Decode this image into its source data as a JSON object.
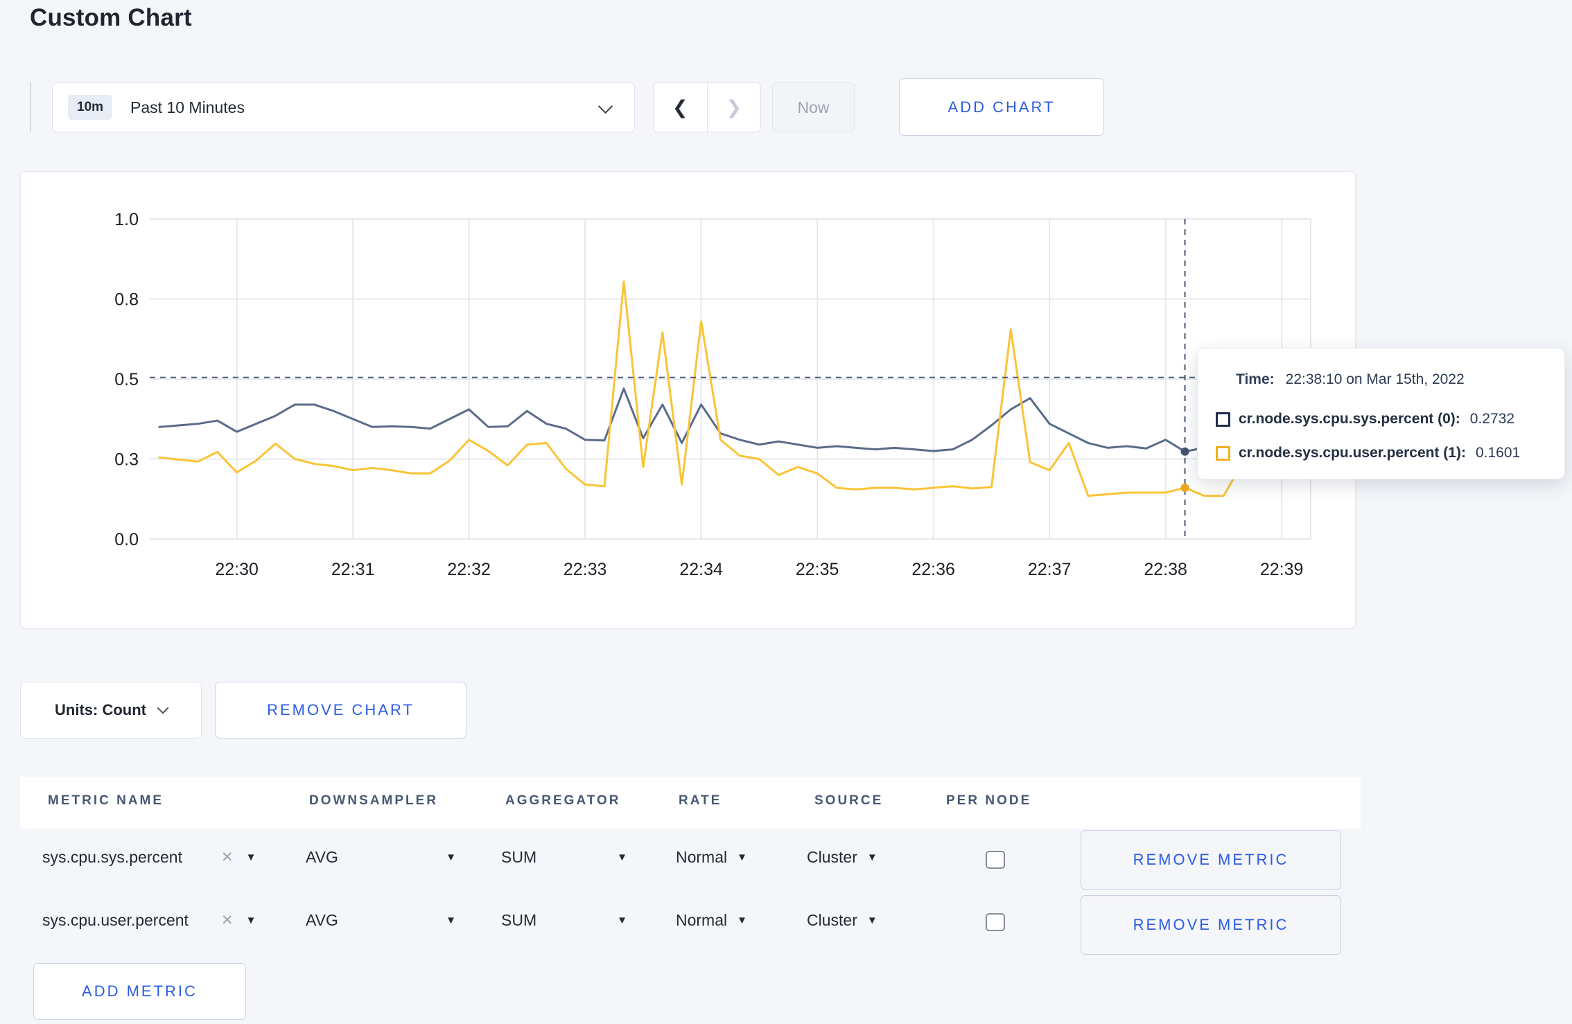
{
  "page_title": "Custom Chart",
  "colors": {
    "accent_blue": "#2a5ce4",
    "page_background": "#f4f6fa",
    "grid_line": "#e7e8eb",
    "axis_text": "#1d2127",
    "crosshair": "#4a5a78",
    "series_sys": "#5b6b8a",
    "series_user": "#fbc437"
  },
  "toolbar": {
    "timescale_badge": "10m",
    "timescale_label": "Past 10 Minutes",
    "prev_label": "❮",
    "next_label": "❯",
    "now_label": "Now",
    "add_chart_label": "ADD CHART"
  },
  "chart_data": {
    "type": "line",
    "title": "",
    "xlabel": "",
    "ylabel": "",
    "grid": true,
    "legend_position": "tooltip",
    "ylim": [
      0,
      1
    ],
    "y_ticks": [
      {
        "value": 0.0,
        "label": "0.0"
      },
      {
        "value": 0.25,
        "label": "0.3"
      },
      {
        "value": 0.5,
        "label": "0.5"
      },
      {
        "value": 0.75,
        "label": "0.8"
      },
      {
        "value": 1.0,
        "label": "1.0"
      }
    ],
    "x_domain": [
      "22:29:15",
      "22:39:15"
    ],
    "x_ticks": [
      "22:30",
      "22:31",
      "22:32",
      "22:33",
      "22:34",
      "22:35",
      "22:36",
      "22:37",
      "22:38",
      "22:39"
    ],
    "times": [
      "22:29:20",
      "22:29:30",
      "22:29:40",
      "22:29:50",
      "22:30:00",
      "22:30:10",
      "22:30:20",
      "22:30:30",
      "22:30:40",
      "22:30:50",
      "22:31:00",
      "22:31:10",
      "22:31:20",
      "22:31:30",
      "22:31:40",
      "22:31:50",
      "22:32:00",
      "22:32:10",
      "22:32:20",
      "22:32:30",
      "22:32:40",
      "22:32:50",
      "22:33:00",
      "22:33:10",
      "22:33:20",
      "22:33:30",
      "22:33:40",
      "22:33:50",
      "22:34:00",
      "22:34:10",
      "22:34:20",
      "22:34:30",
      "22:34:40",
      "22:34:50",
      "22:35:00",
      "22:35:10",
      "22:35:20",
      "22:35:30",
      "22:35:40",
      "22:35:50",
      "22:36:00",
      "22:36:10",
      "22:36:20",
      "22:36:30",
      "22:36:40",
      "22:36:50",
      "22:37:00",
      "22:37:10",
      "22:37:20",
      "22:37:30",
      "22:37:40",
      "22:37:50",
      "22:38:00",
      "22:38:10",
      "22:38:20",
      "22:38:30",
      "22:38:40",
      "22:38:50",
      "22:39:00",
      "22:39:10"
    ],
    "series": [
      {
        "name": "cr.node.sys.cpu.sys.percent",
        "color": "#5b6b8a",
        "values": [
          0.35,
          0.355,
          0.36,
          0.37,
          0.335,
          0.36,
          0.385,
          0.42,
          0.42,
          0.4,
          0.375,
          0.35,
          0.352,
          0.35,
          0.345,
          0.375,
          0.405,
          0.35,
          0.352,
          0.4,
          0.36,
          0.345,
          0.31,
          0.308,
          0.47,
          0.315,
          0.42,
          0.3,
          0.42,
          0.33,
          0.31,
          0.295,
          0.305,
          0.295,
          0.285,
          0.29,
          0.285,
          0.28,
          0.285,
          0.28,
          0.275,
          0.28,
          0.31,
          0.355,
          0.405,
          0.44,
          0.36,
          0.33,
          0.3,
          0.285,
          0.29,
          0.283,
          0.31,
          0.2732,
          0.285,
          0.3,
          0.31,
          0.298,
          0.305,
          0.3
        ]
      },
      {
        "name": "cr.node.sys.cpu.user.percent",
        "color": "#fbc437",
        "values": [
          0.255,
          0.248,
          0.242,
          0.272,
          0.208,
          0.245,
          0.298,
          0.25,
          0.235,
          0.228,
          0.215,
          0.222,
          0.215,
          0.205,
          0.205,
          0.245,
          0.31,
          0.275,
          0.23,
          0.295,
          0.3,
          0.22,
          0.17,
          0.165,
          0.805,
          0.225,
          0.645,
          0.17,
          0.68,
          0.31,
          0.26,
          0.25,
          0.2,
          0.225,
          0.205,
          0.16,
          0.155,
          0.16,
          0.16,
          0.155,
          0.16,
          0.165,
          0.158,
          0.162,
          0.655,
          0.24,
          0.215,
          0.3,
          0.135,
          0.14,
          0.145,
          0.145,
          0.145,
          0.1601,
          0.135,
          0.135,
          0.24,
          0.305,
          0.245,
          0.275
        ]
      }
    ],
    "crosshair": {
      "time": "22:38:10",
      "hline_value": 0.505,
      "points": [
        {
          "series": 0,
          "value": 0.2732,
          "color": "#44546e"
        },
        {
          "series": 1,
          "value": 0.1601,
          "color": "#eda71d"
        }
      ]
    }
  },
  "tooltip": {
    "time_label": "Time:",
    "time_value": "22:38:10 on Mar 15th, 2022",
    "entries": [
      {
        "name": "cr.node.sys.cpu.sys.percent (0):",
        "value": "0.2732",
        "swatch": "#1e2d4d"
      },
      {
        "name": "cr.node.sys.cpu.user.percent (1):",
        "value": "0.1601",
        "swatch": "#f2b01e"
      }
    ]
  },
  "chart_controls": {
    "units_label": "Units: Count",
    "remove_chart_label": "REMOVE CHART"
  },
  "metrics_table": {
    "headers": [
      "METRIC NAME",
      "DOWNSAMPLER",
      "AGGREGATOR",
      "RATE",
      "SOURCE",
      "PER NODE"
    ],
    "rows": [
      {
        "metric": "sys.cpu.sys.percent",
        "clear": "✕",
        "downsampler": "AVG",
        "aggregator": "SUM",
        "rate": "Normal",
        "source": "Cluster",
        "per_node_checked": false,
        "action": "REMOVE METRIC"
      },
      {
        "metric": "sys.cpu.user.percent",
        "clear": "✕",
        "downsampler": "AVG",
        "aggregator": "SUM",
        "rate": "Normal",
        "source": "Cluster",
        "per_node_checked": false,
        "action": "REMOVE METRIC"
      }
    ],
    "add_metric_label": "ADD METRIC"
  }
}
